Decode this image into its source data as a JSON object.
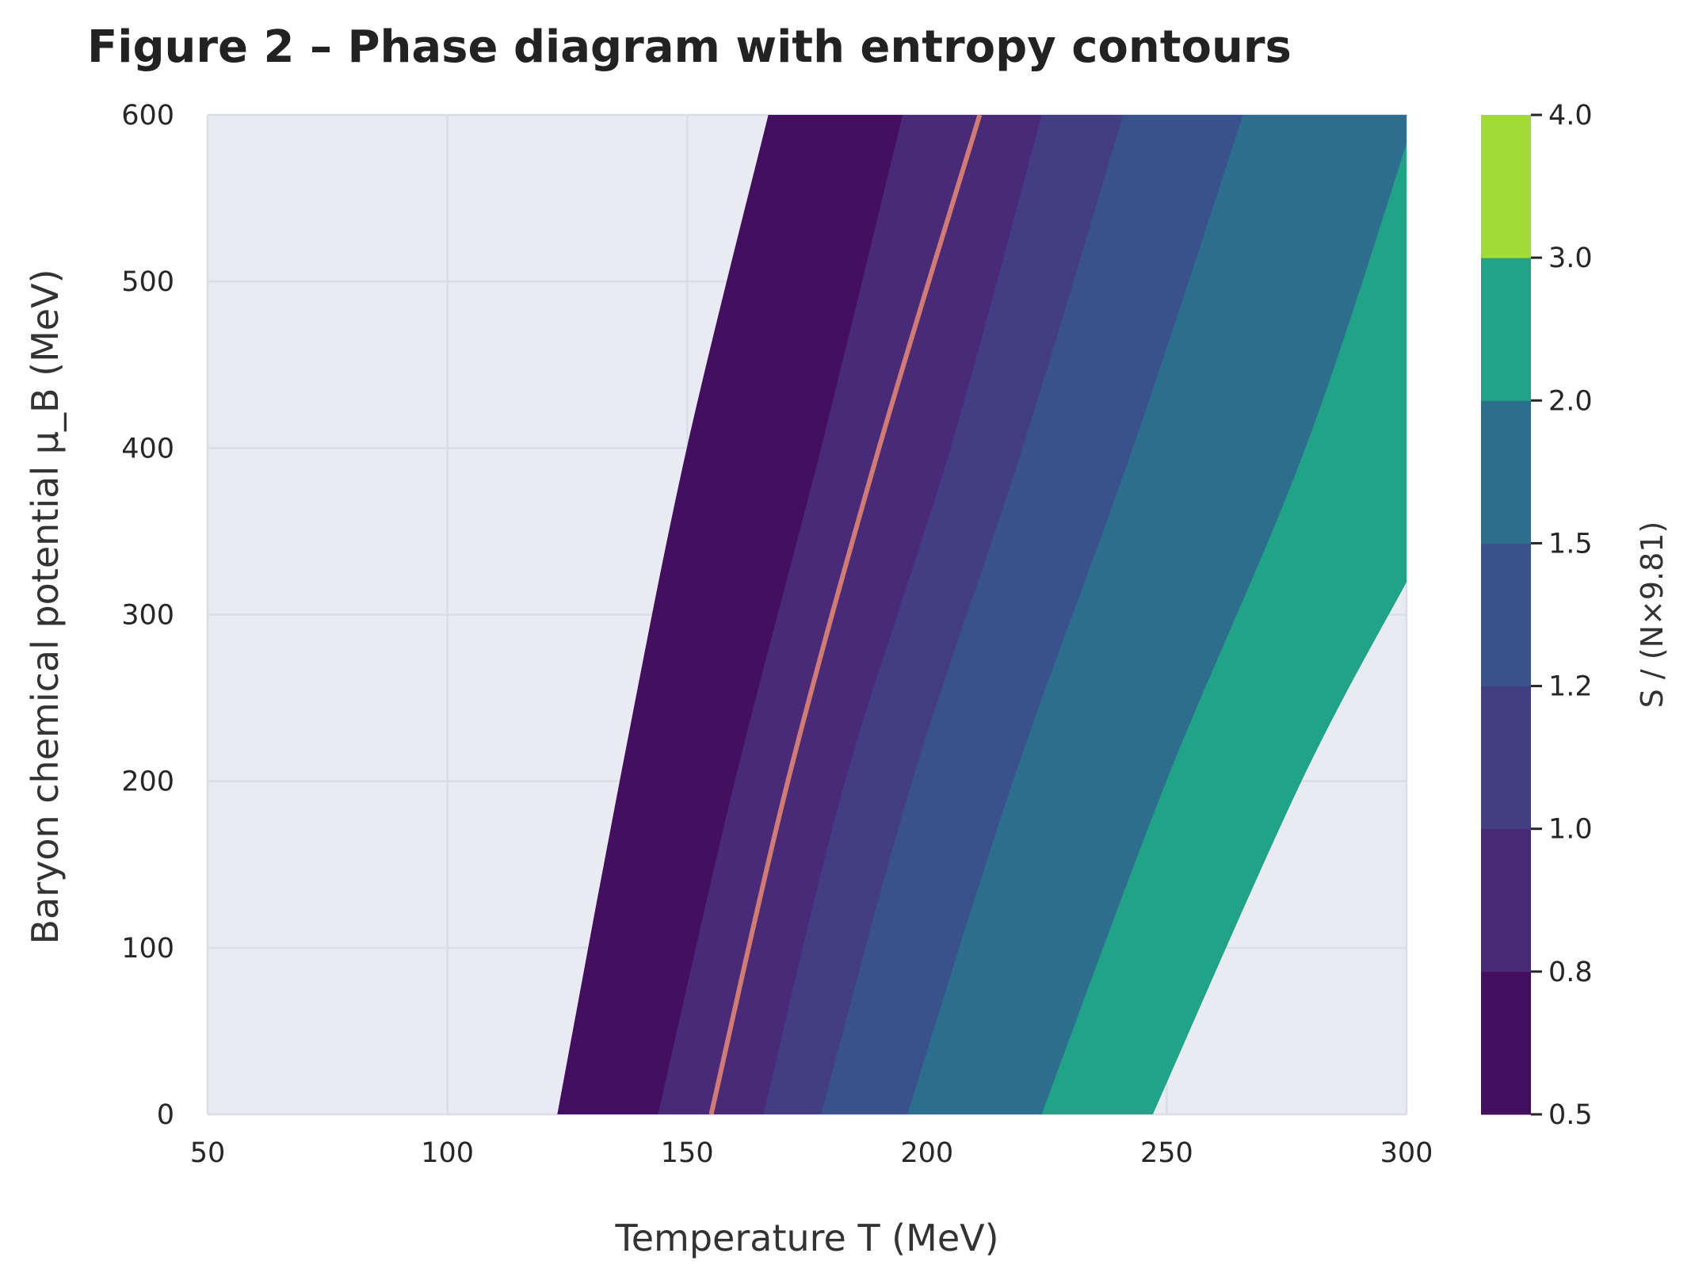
{
  "chart_data": {
    "type": "contourf",
    "title": "Figure 2 – Phase diagram with entropy contours",
    "xlabel": "Temperature T (MeV)",
    "ylabel": "Baryon chemical potential μ_B (MeV)",
    "xlim": [
      50,
      300
    ],
    "ylim": [
      0,
      600
    ],
    "xticks": [
      "50",
      "100",
      "150",
      "200",
      "250",
      "300"
    ],
    "yticks": [
      "0",
      "100",
      "200",
      "300",
      "400",
      "500",
      "600"
    ],
    "grid": true,
    "colorbar": {
      "label": "S / (N×9.81)",
      "levels": [
        0.5,
        0.8,
        1.0,
        1.2,
        1.5,
        2.0,
        3.0,
        4.0
      ],
      "level_labels": [
        "0.5",
        "0.8",
        "1.0",
        "1.2",
        "1.5",
        "2.0",
        "3.0",
        "4.0"
      ],
      "colors": [
        "#440f5e",
        "#482a78",
        "#433d84",
        "#39528b",
        "#2d6e8e",
        "#20a386",
        "#a2da37"
      ]
    },
    "level_boundaries": [
      {
        "level": 0.5,
        "points": [
          [
            123,
            0
          ],
          [
            136,
            200
          ],
          [
            150,
            400
          ],
          [
            167,
            600
          ]
        ]
      },
      {
        "level": 0.8,
        "points": [
          [
            144,
            0
          ],
          [
            160,
            200
          ],
          [
            178,
            400
          ],
          [
            195,
            600
          ]
        ]
      },
      {
        "level": 1.0,
        "points": [
          [
            166,
            0
          ],
          [
            183,
            200
          ],
          [
            205,
            400
          ],
          [
            224,
            600
          ]
        ]
      },
      {
        "level": 1.2,
        "points": [
          [
            178,
            0
          ],
          [
            197,
            200
          ],
          [
            220,
            400
          ],
          [
            241,
            600
          ]
        ]
      },
      {
        "level": 1.5,
        "points": [
          [
            196,
            0
          ],
          [
            218,
            200
          ],
          [
            243,
            400
          ],
          [
            266,
            600
          ]
        ]
      },
      {
        "level": 2.0,
        "points": [
          [
            224,
            0
          ],
          [
            250,
            200
          ],
          [
            279,
            400
          ],
          [
            302,
            600
          ]
        ]
      },
      {
        "level": 3.0,
        "points": [
          [
            247,
            0
          ],
          [
            278,
            200
          ],
          [
            300,
            320
          ]
        ]
      }
    ],
    "highlight_contour": {
      "color": "#d17b73",
      "points": [
        [
          155,
          0
        ],
        [
          171,
          200
        ],
        [
          190,
          400
        ],
        [
          211,
          600
        ]
      ]
    }
  }
}
